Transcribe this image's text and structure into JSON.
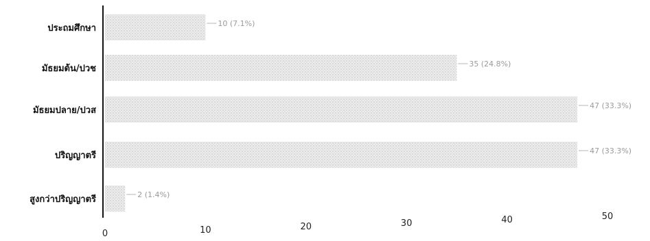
{
  "chart_data": {
    "type": "bar",
    "orientation": "horizontal",
    "categories": [
      "ประถมศึกษา",
      "มัธยมต้น/ปวช",
      "มัธยมปลาย/ปวส",
      "ปริญญาตรี",
      "สูงกว่าปริญญาตรี"
    ],
    "values": [
      10,
      35,
      47,
      47,
      2
    ],
    "data_labels": [
      "10 (7.1%)",
      "35 (24.8%)",
      "47 (33.3%)",
      "47 (33.3%)",
      "2 (1.4%)"
    ],
    "x_ticks": [
      "0",
      "10",
      "20",
      "30",
      "40",
      "50"
    ],
    "xlim": [
      0,
      50
    ],
    "title": "",
    "xlabel": "",
    "ylabel": "",
    "grid": false,
    "legend": "none",
    "bar_color": "#d9d9d9",
    "axis_color": "#111111"
  }
}
